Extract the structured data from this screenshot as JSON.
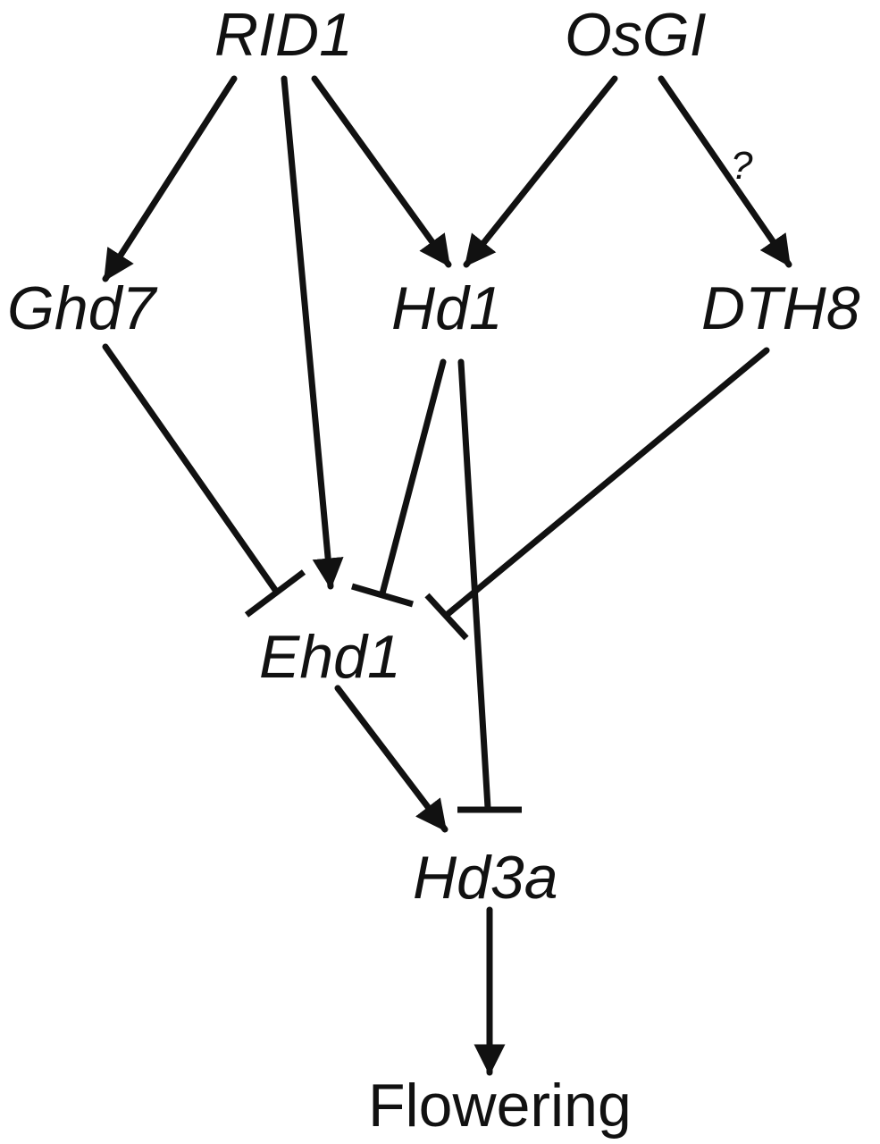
{
  "diagram": {
    "nodes": {
      "rid1": "RID1",
      "osgi": "OsGI",
      "ghd7": "Ghd7",
      "hd1": "Hd1",
      "dth8": "DTH8",
      "ehd1": "Ehd1",
      "hd3a": "Hd3a",
      "flowering": "Flowering"
    },
    "edges": [
      {
        "from": "RID1",
        "to": "Ghd7",
        "type": "activation"
      },
      {
        "from": "RID1",
        "to": "Ehd1",
        "type": "activation"
      },
      {
        "from": "RID1",
        "to": "Hd1",
        "type": "activation"
      },
      {
        "from": "OsGI",
        "to": "Hd1",
        "type": "activation"
      },
      {
        "from": "OsGI",
        "to": "DTH8",
        "type": "activation",
        "label": "?"
      },
      {
        "from": "Ghd7",
        "to": "Ehd1",
        "type": "repression"
      },
      {
        "from": "Hd1",
        "to": "Ehd1",
        "type": "repression"
      },
      {
        "from": "DTH8",
        "to": "Ehd1",
        "type": "repression"
      },
      {
        "from": "Hd1",
        "to": "Hd3a",
        "type": "repression"
      },
      {
        "from": "Ehd1",
        "to": "Hd3a",
        "type": "activation"
      },
      {
        "from": "Hd3a",
        "to": "Flowering",
        "type": "activation"
      }
    ],
    "uncertain_edge_label": "?",
    "colors": {
      "ink": "#111111",
      "background": "#ffffff"
    }
  }
}
